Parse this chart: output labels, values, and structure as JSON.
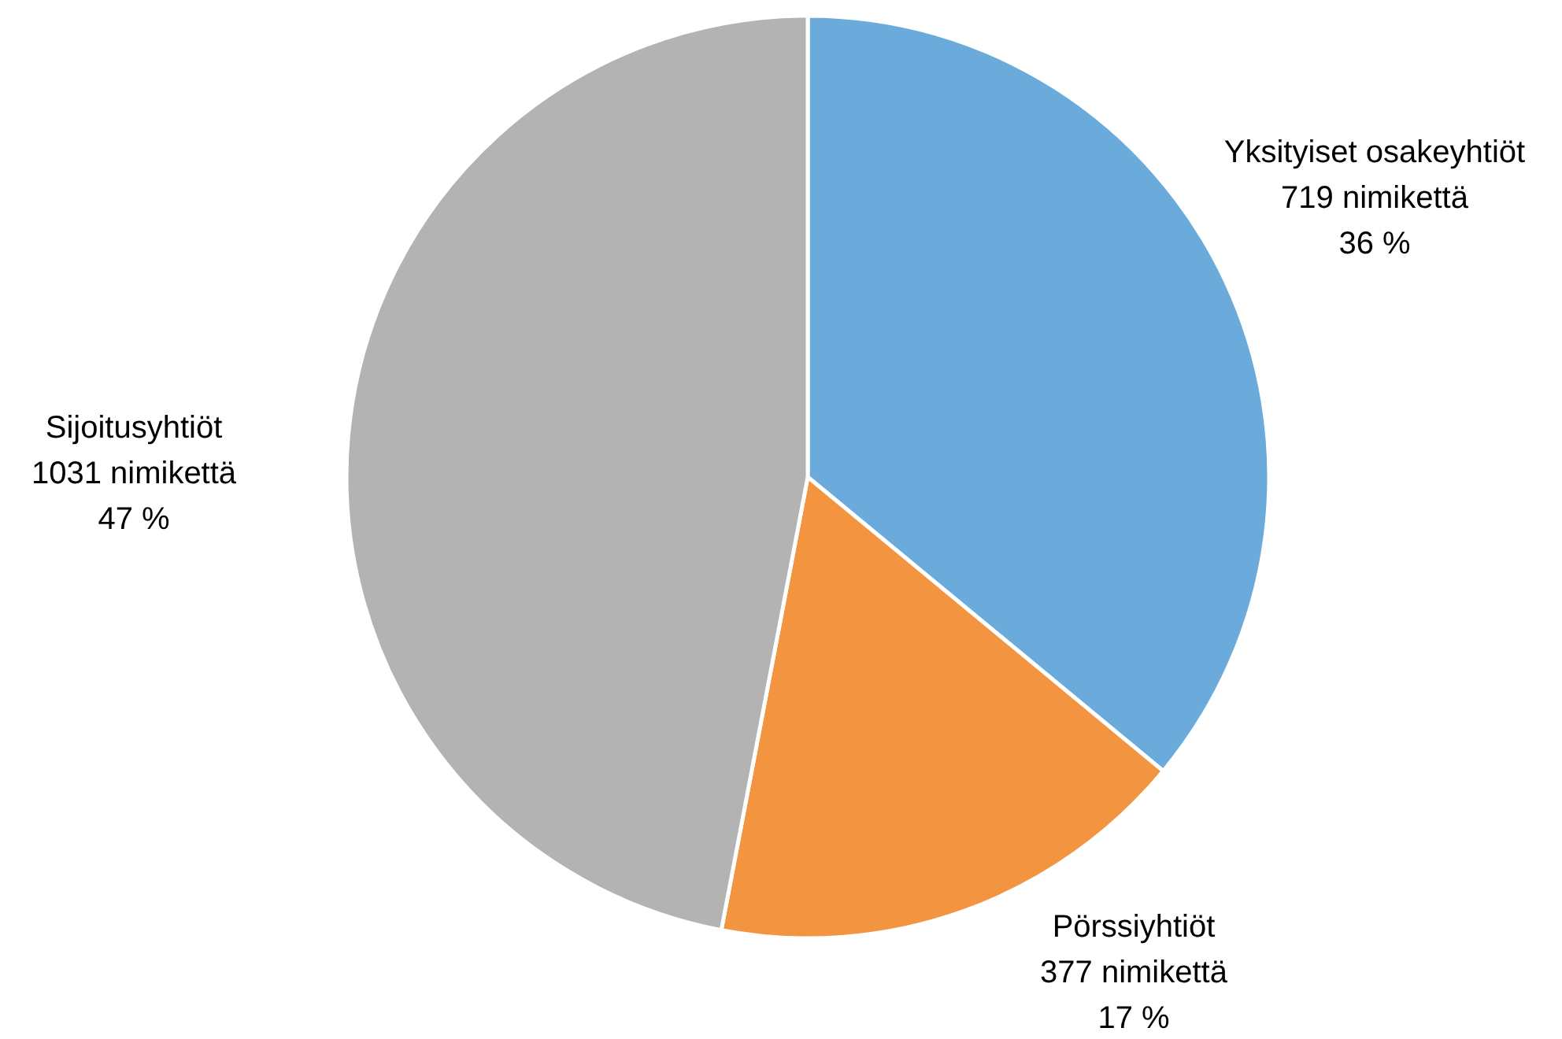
{
  "chart_data": {
    "type": "pie",
    "categories": [
      "Yksityiset osakeyhtiöt",
      "Pörssiyhtiöt",
      "Sijoitusyhtiöt"
    ],
    "values": [
      36,
      17,
      47
    ],
    "value_labels": [
      "719 nimikettä\n36 %",
      "377 nimikettä\n17 %",
      "1031 nimikettä\n47 %"
    ],
    "colors": [
      "#6aabdc",
      "#f39440",
      "#b3b3b3"
    ]
  }
}
